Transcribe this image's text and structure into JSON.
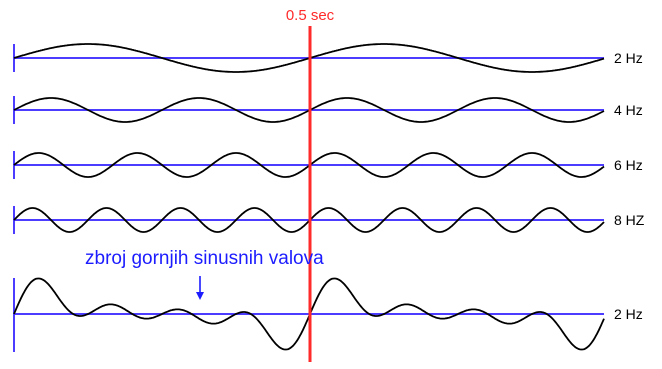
{
  "marker": {
    "label": "0.5 sec",
    "color": "#ff2a2a"
  },
  "annotation": {
    "text": "zbroj gornjih sinusnih valova",
    "color": "#1c1cff"
  },
  "rows": [
    {
      "label": "2 Hz",
      "frequency_hz": 2
    },
    {
      "label": "4 Hz",
      "frequency_hz": 4
    },
    {
      "label": "6 Hz",
      "frequency_hz": 6
    },
    {
      "label": "8 HZ",
      "frequency_hz": 8
    },
    {
      "label": "2 Hz",
      "components_hz": [
        2,
        4,
        6,
        8
      ],
      "is_sum": true
    }
  ],
  "colors": {
    "baseline": "#4b3cff",
    "wave": "#000000",
    "tick": "#4b3cff"
  }
}
